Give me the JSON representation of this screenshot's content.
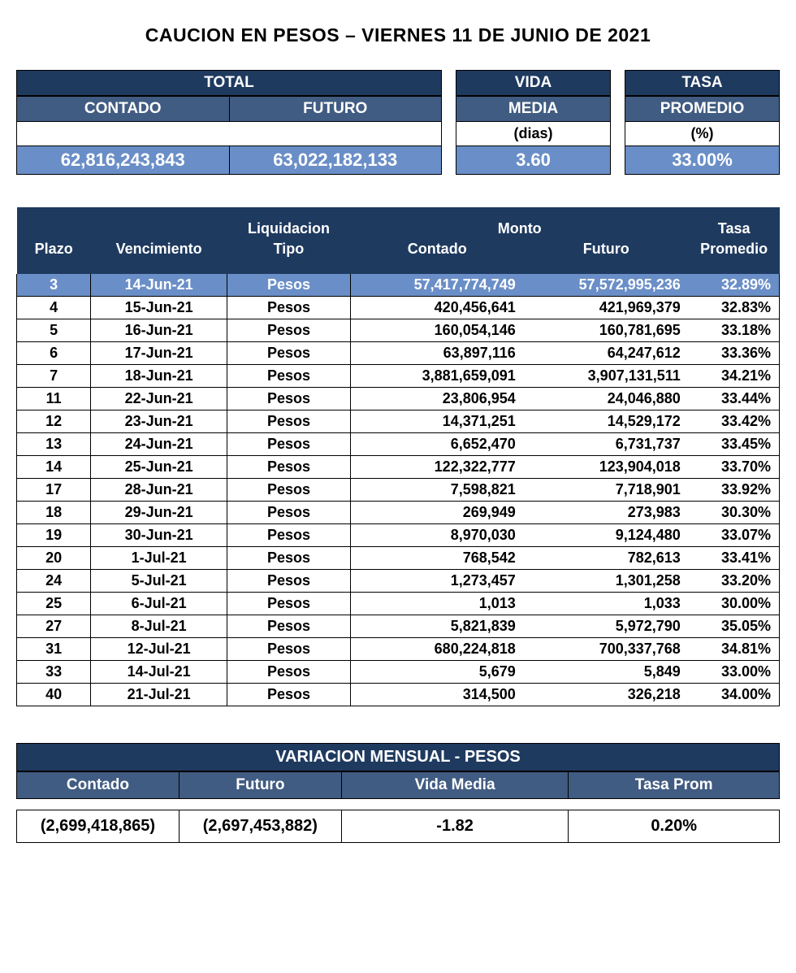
{
  "title": "CAUCION EN PESOS – VIERNES 11 DE JUNIO DE 2021",
  "colors": {
    "navy": "#1f3a5f",
    "mid": "#415c82",
    "light": "#6a8ec7",
    "border": "#000000",
    "white": "#ffffff"
  },
  "summary": {
    "headers": {
      "total": "TOTAL",
      "contado": "CONTADO",
      "futuro": "FUTURO",
      "vida": "VIDA",
      "media": "MEDIA",
      "tasa": "TASA",
      "promedio": "PROMEDIO",
      "dias": "(dias)",
      "pct": "(%)"
    },
    "values": {
      "contado": "62,816,243,843",
      "futuro": "63,022,182,133",
      "vida_media": "3.60",
      "tasa_prom": "33.00%"
    }
  },
  "detail": {
    "headers": {
      "plazo": "Plazo",
      "venc": "Vencimiento",
      "liq": "Liquidacion",
      "tipo": "Tipo",
      "monto": "Monto",
      "contado": "Contado",
      "futuro": "Futuro",
      "tasa": "Tasa",
      "prom": "Promedio"
    },
    "rows": [
      {
        "plazo": "3",
        "venc": "14-Jun-21",
        "tipo": "Pesos",
        "contado": "57,417,774,749",
        "futuro": "57,572,995,236",
        "tasa": "32.89%",
        "hl": true
      },
      {
        "plazo": "4",
        "venc": "15-Jun-21",
        "tipo": "Pesos",
        "contado": "420,456,641",
        "futuro": "421,969,379",
        "tasa": "32.83%"
      },
      {
        "plazo": "5",
        "venc": "16-Jun-21",
        "tipo": "Pesos",
        "contado": "160,054,146",
        "futuro": "160,781,695",
        "tasa": "33.18%"
      },
      {
        "plazo": "6",
        "venc": "17-Jun-21",
        "tipo": "Pesos",
        "contado": "63,897,116",
        "futuro": "64,247,612",
        "tasa": "33.36%"
      },
      {
        "plazo": "7",
        "venc": "18-Jun-21",
        "tipo": "Pesos",
        "contado": "3,881,659,091",
        "futuro": "3,907,131,511",
        "tasa": "34.21%"
      },
      {
        "plazo": "11",
        "venc": "22-Jun-21",
        "tipo": "Pesos",
        "contado": "23,806,954",
        "futuro": "24,046,880",
        "tasa": "33.44%"
      },
      {
        "plazo": "12",
        "venc": "23-Jun-21",
        "tipo": "Pesos",
        "contado": "14,371,251",
        "futuro": "14,529,172",
        "tasa": "33.42%"
      },
      {
        "plazo": "13",
        "venc": "24-Jun-21",
        "tipo": "Pesos",
        "contado": "6,652,470",
        "futuro": "6,731,737",
        "tasa": "33.45%"
      },
      {
        "plazo": "14",
        "venc": "25-Jun-21",
        "tipo": "Pesos",
        "contado": "122,322,777",
        "futuro": "123,904,018",
        "tasa": "33.70%"
      },
      {
        "plazo": "17",
        "venc": "28-Jun-21",
        "tipo": "Pesos",
        "contado": "7,598,821",
        "futuro": "7,718,901",
        "tasa": "33.92%"
      },
      {
        "plazo": "18",
        "venc": "29-Jun-21",
        "tipo": "Pesos",
        "contado": "269,949",
        "futuro": "273,983",
        "tasa": "30.30%"
      },
      {
        "plazo": "19",
        "venc": "30-Jun-21",
        "tipo": "Pesos",
        "contado": "8,970,030",
        "futuro": "9,124,480",
        "tasa": "33.07%"
      },
      {
        "plazo": "20",
        "venc": "1-Jul-21",
        "tipo": "Pesos",
        "contado": "768,542",
        "futuro": "782,613",
        "tasa": "33.41%"
      },
      {
        "plazo": "24",
        "venc": "5-Jul-21",
        "tipo": "Pesos",
        "contado": "1,273,457",
        "futuro": "1,301,258",
        "tasa": "33.20%"
      },
      {
        "plazo": "25",
        "venc": "6-Jul-21",
        "tipo": "Pesos",
        "contado": "1,013",
        "futuro": "1,033",
        "tasa": "30.00%"
      },
      {
        "plazo": "27",
        "venc": "8-Jul-21",
        "tipo": "Pesos",
        "contado": "5,821,839",
        "futuro": "5,972,790",
        "tasa": "35.05%"
      },
      {
        "plazo": "31",
        "venc": "12-Jul-21",
        "tipo": "Pesos",
        "contado": "680,224,818",
        "futuro": "700,337,768",
        "tasa": "34.81%"
      },
      {
        "plazo": "33",
        "venc": "14-Jul-21",
        "tipo": "Pesos",
        "contado": "5,679",
        "futuro": "5,849",
        "tasa": "33.00%"
      },
      {
        "plazo": "40",
        "venc": "21-Jul-21",
        "tipo": "Pesos",
        "contado": "314,500",
        "futuro": "326,218",
        "tasa": "34.00%"
      }
    ]
  },
  "variation": {
    "title": "VARIACION MENSUAL - PESOS",
    "headers": {
      "contado": "Contado",
      "futuro": "Futuro",
      "vida": "Vida Media",
      "tasa": "Tasa Prom"
    },
    "values": {
      "contado": "(2,699,418,865)",
      "futuro": "(2,697,453,882)",
      "vida": "-1.82",
      "tasa": "0.20%"
    }
  }
}
